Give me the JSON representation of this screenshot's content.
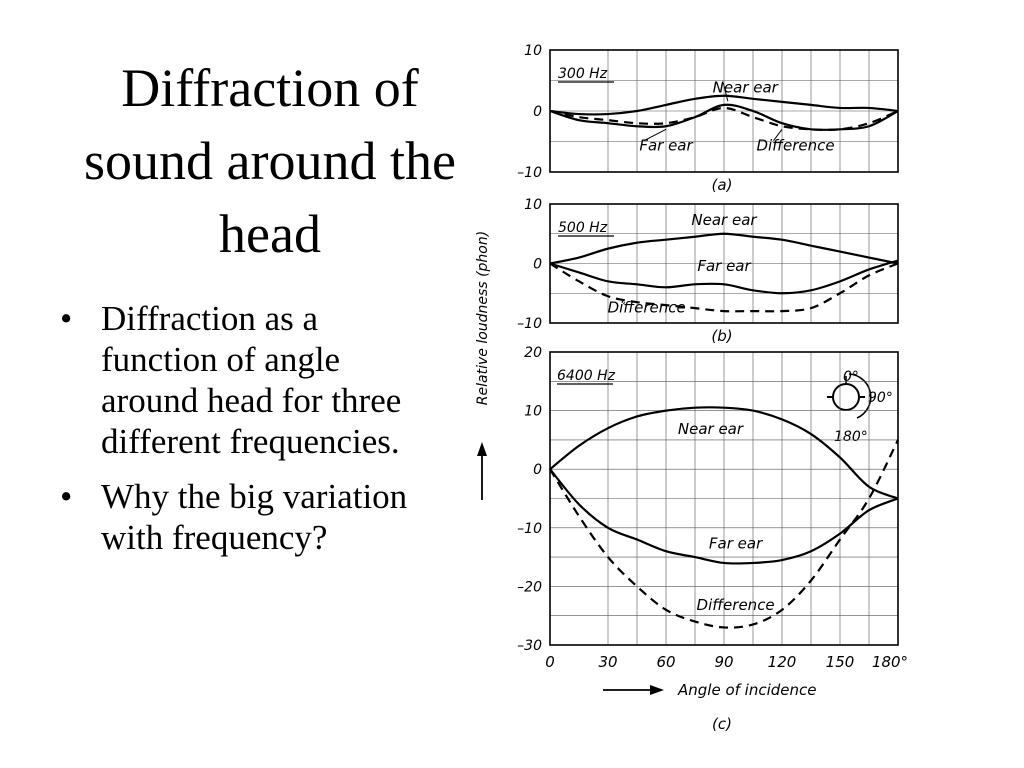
{
  "slide": {
    "title": "Diffraction of sound around the head",
    "bullets": [
      "Diffraction as a function of angle around head for three different frequencies.",
      "Why the big variation with frequency?"
    ]
  },
  "figure": {
    "ylabel": "Relative loudness (phon)",
    "xlabel": "Angle of incidence",
    "inset": {
      "labels": [
        "0°",
        "90°",
        "180°"
      ]
    }
  },
  "colors": {
    "background": "#ffffff",
    "ink": "#000000"
  },
  "chart_data": [
    {
      "type": "line",
      "panel": "(a)",
      "title": "300 Hz",
      "x": [
        0,
        15,
        30,
        45,
        60,
        75,
        90,
        105,
        120,
        135,
        150,
        165,
        180
      ],
      "ylim": [
        -10,
        10
      ],
      "yticks": [
        10,
        0,
        -10
      ],
      "xlim": [
        0,
        180
      ],
      "grid": true,
      "series": [
        {
          "name": "Near ear",
          "style": "solid",
          "values": [
            0,
            -0.5,
            -0.5,
            0,
            1,
            2,
            2.5,
            2,
            1.5,
            1,
            0.5,
            0.5,
            0
          ]
        },
        {
          "name": "Far ear",
          "style": "solid",
          "values": [
            0,
            -1.5,
            -2,
            -2.5,
            -2.5,
            -1,
            1,
            0,
            -2,
            -3,
            -3,
            -2.5,
            0
          ]
        },
        {
          "name": "Difference",
          "style": "dashed",
          "values": [
            0,
            -1,
            -1.5,
            -2,
            -2,
            -1,
            0.5,
            -1,
            -2.5,
            -3,
            -3,
            -2,
            0
          ]
        }
      ]
    },
    {
      "type": "line",
      "panel": "(b)",
      "title": "500 Hz",
      "x": [
        0,
        15,
        30,
        45,
        60,
        75,
        90,
        105,
        120,
        135,
        150,
        165,
        180
      ],
      "ylim": [
        -10,
        10
      ],
      "yticks": [
        10,
        0,
        -10
      ],
      "xlim": [
        0,
        180
      ],
      "grid": true,
      "series": [
        {
          "name": "Near ear",
          "style": "solid",
          "values": [
            0,
            1,
            2.5,
            3.5,
            4,
            4.5,
            5,
            4.5,
            4,
            3,
            2,
            1,
            0
          ]
        },
        {
          "name": "Far ear",
          "style": "solid",
          "values": [
            0,
            -1.5,
            -3,
            -3.5,
            -4,
            -3.5,
            -3.5,
            -4.5,
            -5,
            -4.5,
            -3,
            -1,
            0.5
          ]
        },
        {
          "name": "Difference",
          "style": "dashed",
          "values": [
            0,
            -3,
            -5.5,
            -6.5,
            -7,
            -7.5,
            -8,
            -8,
            -8,
            -7.5,
            -5,
            -2,
            0
          ]
        }
      ]
    },
    {
      "type": "line",
      "panel": "(c)",
      "title": "6400 Hz",
      "x": [
        0,
        15,
        30,
        45,
        60,
        75,
        90,
        105,
        120,
        135,
        150,
        165,
        180
      ],
      "xticklabels": [
        "0",
        "30",
        "60",
        "90",
        "120",
        "150",
        "180°"
      ],
      "ylim": [
        -30,
        20
      ],
      "yticks": [
        20,
        10,
        0,
        -10,
        -20,
        -30
      ],
      "xlim": [
        0,
        180
      ],
      "grid": true,
      "series": [
        {
          "name": "Near ear",
          "style": "solid",
          "values": [
            0,
            4,
            7,
            9,
            10,
            10.5,
            10.5,
            10,
            8.5,
            6,
            2,
            -3,
            -5
          ]
        },
        {
          "name": "Far ear",
          "style": "solid",
          "values": [
            0,
            -6,
            -10,
            -12,
            -14,
            -15,
            -16,
            -16,
            -15.5,
            -14,
            -11,
            -7,
            -5
          ]
        },
        {
          "name": "Difference",
          "style": "dashed",
          "values": [
            0,
            -8,
            -15,
            -20,
            -24,
            -26,
            -27,
            -26.5,
            -24,
            -19,
            -12,
            -5,
            5
          ]
        }
      ]
    }
  ]
}
